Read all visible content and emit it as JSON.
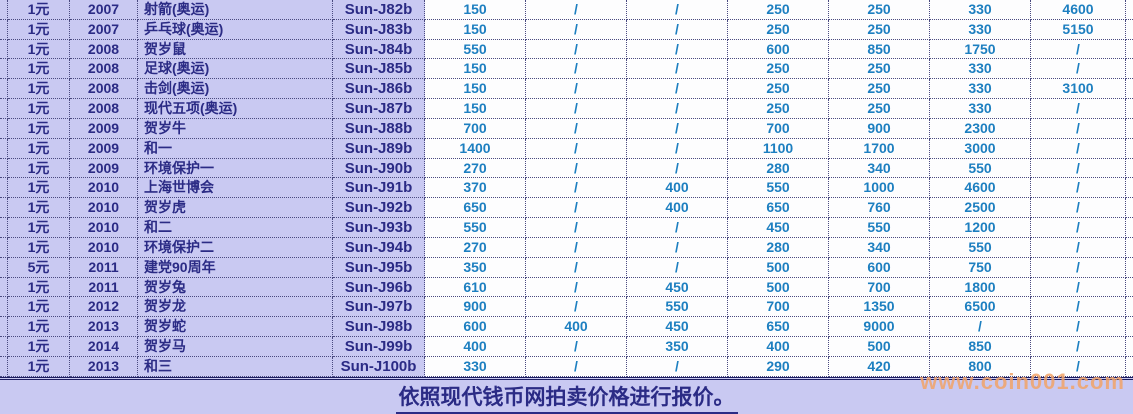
{
  "table": {
    "rows": [
      {
        "denomination": "1元",
        "year": "2007",
        "name": "射箭(奥运)",
        "code": "Sun-J82b",
        "prices": [
          "150",
          "/",
          "/",
          "250",
          "250",
          "330",
          "4600"
        ]
      },
      {
        "denomination": "1元",
        "year": "2007",
        "name": "乒乓球(奥运)",
        "code": "Sun-J83b",
        "prices": [
          "150",
          "/",
          "/",
          "250",
          "250",
          "330",
          "5150"
        ]
      },
      {
        "denomination": "1元",
        "year": "2008",
        "name": "贺岁鼠",
        "code": "Sun-J84b",
        "prices": [
          "550",
          "/",
          "/",
          "600",
          "850",
          "1750",
          "/"
        ]
      },
      {
        "denomination": "1元",
        "year": "2008",
        "name": "足球(奥运)",
        "code": "Sun-J85b",
        "prices": [
          "150",
          "/",
          "/",
          "250",
          "250",
          "330",
          "/"
        ]
      },
      {
        "denomination": "1元",
        "year": "2008",
        "name": "击剑(奥运)",
        "code": "Sun-J86b",
        "prices": [
          "150",
          "/",
          "/",
          "250",
          "250",
          "330",
          "3100"
        ]
      },
      {
        "denomination": "1元",
        "year": "2008",
        "name": "现代五项(奥运)",
        "code": "Sun-J87b",
        "prices": [
          "150",
          "/",
          "/",
          "250",
          "250",
          "330",
          "/"
        ]
      },
      {
        "denomination": "1元",
        "year": "2009",
        "name": "贺岁牛",
        "code": "Sun-J88b",
        "prices": [
          "700",
          "/",
          "/",
          "700",
          "900",
          "2300",
          "/"
        ]
      },
      {
        "denomination": "1元",
        "year": "2009",
        "name": "和一",
        "code": "Sun-J89b",
        "prices": [
          "1400",
          "/",
          "/",
          "1100",
          "1700",
          "3000",
          "/"
        ]
      },
      {
        "denomination": "1元",
        "year": "2009",
        "name": "环境保护一",
        "code": "Sun-J90b",
        "prices": [
          "270",
          "/",
          "/",
          "280",
          "340",
          "550",
          "/"
        ]
      },
      {
        "denomination": "1元",
        "year": "2010",
        "name": "上海世博会",
        "code": "Sun-J91b",
        "prices": [
          "370",
          "/",
          "400",
          "550",
          "1000",
          "4600",
          "/"
        ]
      },
      {
        "denomination": "1元",
        "year": "2010",
        "name": "贺岁虎",
        "code": "Sun-J92b",
        "prices": [
          "650",
          "/",
          "400",
          "650",
          "760",
          "2500",
          "/"
        ]
      },
      {
        "denomination": "1元",
        "year": "2010",
        "name": "和二",
        "code": "Sun-J93b",
        "prices": [
          "550",
          "/",
          "/",
          "450",
          "550",
          "1200",
          "/"
        ]
      },
      {
        "denomination": "1元",
        "year": "2010",
        "name": "环境保护二",
        "code": "Sun-J94b",
        "prices": [
          "270",
          "/",
          "/",
          "280",
          "340",
          "550",
          "/"
        ]
      },
      {
        "denomination": "5元",
        "year": "2011",
        "name": "建党90周年",
        "code": "Sun-J95b",
        "prices": [
          "350",
          "/",
          "/",
          "500",
          "600",
          "750",
          "/"
        ]
      },
      {
        "denomination": "1元",
        "year": "2011",
        "name": "贺岁兔",
        "code": "Sun-J96b",
        "prices": [
          "610",
          "/",
          "450",
          "500",
          "700",
          "1800",
          "/"
        ]
      },
      {
        "denomination": "1元",
        "year": "2012",
        "name": "贺岁龙",
        "code": "Sun-J97b",
        "prices": [
          "900",
          "/",
          "550",
          "700",
          "1350",
          "6500",
          "/"
        ]
      },
      {
        "denomination": "1元",
        "year": "2013",
        "name": "贺岁蛇",
        "code": "Sun-J98b",
        "prices": [
          "600",
          "400",
          "450",
          "650",
          "9000",
          "/",
          "/"
        ]
      },
      {
        "denomination": "1元",
        "year": "2014",
        "name": "贺岁马",
        "code": "Sun-J99b",
        "prices": [
          "400",
          "/",
          "350",
          "400",
          "500",
          "850",
          "/"
        ]
      },
      {
        "denomination": "1元",
        "year": "2013",
        "name": "和三",
        "code": "Sun-J100b",
        "prices": [
          "330",
          "/",
          "/",
          "290",
          "420",
          "800",
          "/"
        ]
      }
    ]
  },
  "footer": {
    "note": "依照现代钱币网拍卖价格进行报价。"
  },
  "watermark": {
    "text": "www.coin001.com"
  },
  "colors": {
    "row_label_bg": "#c9c9f2",
    "price_bg": "#fdfdfe",
    "label_text": "#2b2b85",
    "price_text": "#1d7fc0",
    "border": "#4a4a80",
    "watermark": "#f2a469"
  }
}
